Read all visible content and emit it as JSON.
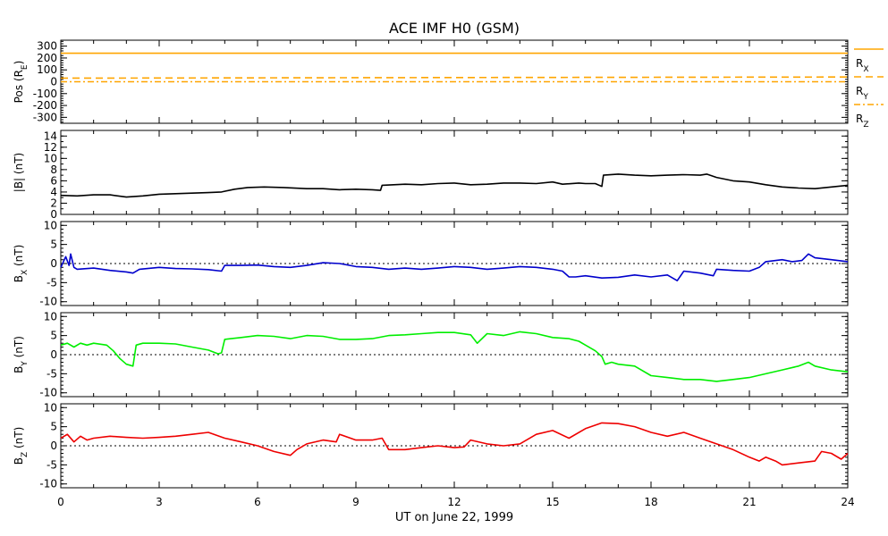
{
  "chart_data": {
    "type": "line",
    "title": "ACE IMF H0 (GSM)",
    "xlabel": "UT on June 22, 1999",
    "xlim": [
      0,
      24
    ],
    "xticks": [
      "0",
      "3",
      "6",
      "9",
      "12",
      "15",
      "18",
      "21",
      "24"
    ],
    "panels": [
      {
        "id": "pos",
        "ylabel": "Pos (R",
        "ylabel_sub": "E",
        "ylabel_tail": ")",
        "ylim": [
          -350,
          350
        ],
        "yticks": [
          300,
          200,
          100,
          0,
          -100,
          -200,
          -300
        ],
        "zero_line": false,
        "series": [
          {
            "name": "R",
            "sub": "X",
            "color": "#ffa500",
            "style": "solid",
            "x": [
              0,
              24
            ],
            "values": [
              240,
              240
            ]
          },
          {
            "name": "R",
            "sub": "Y",
            "color": "#ffa500",
            "style": "dashed",
            "x": [
              0,
              12,
              24
            ],
            "values": [
              30,
              35,
              40
            ]
          },
          {
            "name": "R",
            "sub": "Z",
            "color": "#ffa500",
            "style": "dashdot",
            "x": [
              0,
              24
            ],
            "values": [
              0,
              0
            ]
          }
        ]
      },
      {
        "id": "bmag",
        "ylabel": "|B| (nT)",
        "ylim": [
          0,
          15
        ],
        "yticks": [
          14,
          12,
          10,
          8,
          6,
          4,
          2,
          0
        ],
        "zero_line": false,
        "series": [
          {
            "color": "#000000",
            "x": [
              0,
              0.5,
              1,
              1.5,
              2,
              2.5,
              3,
              3.5,
              4,
              4.5,
              4.9,
              5.3,
              5.7,
              6.2,
              6.8,
              7.5,
              8,
              8.5,
              9,
              9.5,
              9.75,
              9.8,
              10.5,
              11,
              11.5,
              12,
              12.5,
              13,
              13.5,
              14,
              14.5,
              15,
              15.3,
              15.8,
              16,
              16.3,
              16.5,
              16.55,
              17,
              17.5,
              18,
              18.5,
              19,
              19.5,
              19.7,
              20,
              20.5,
              21,
              21.5,
              22,
              22.5,
              23,
              23.5,
              24
            ],
            "values": [
              3.4,
              3.3,
              3.5,
              3.5,
              3.1,
              3.3,
              3.6,
              3.7,
              3.8,
              3.9,
              4.0,
              4.5,
              4.8,
              4.9,
              4.8,
              4.6,
              4.6,
              4.4,
              4.5,
              4.4,
              4.3,
              5.2,
              5.4,
              5.3,
              5.5,
              5.6,
              5.3,
              5.4,
              5.6,
              5.6,
              5.5,
              5.8,
              5.4,
              5.6,
              5.5,
              5.5,
              5.0,
              7.0,
              7.2,
              7.0,
              6.9,
              7.0,
              7.1,
              7.0,
              7.2,
              6.6,
              6.0,
              5.8,
              5.3,
              4.9,
              4.7,
              4.6,
              4.9,
              5.2
            ]
          }
        ]
      },
      {
        "id": "bx",
        "ylabel": "B",
        "ylabel_sub": "X",
        "ylabel_tail": " (nT)",
        "ylim": [
          -11,
          11
        ],
        "yticks": [
          10,
          5,
          0,
          -5,
          -10
        ],
        "zero_line": true,
        "series": [
          {
            "color": "#0000cc",
            "x": [
              0,
              0.15,
              0.25,
              0.3,
              0.4,
              0.5,
              1,
              1.5,
              2,
              2.2,
              2.4,
              3,
              3.5,
              4,
              4.5,
              4.9,
              5.0,
              5.5,
              6,
              6.5,
              7,
              7.5,
              8,
              8.5,
              9,
              9.5,
              10,
              10.5,
              11,
              11.5,
              12,
              12.5,
              13,
              13.5,
              14,
              14.5,
              15,
              15.3,
              15.5,
              15.7,
              16,
              16.5,
              17,
              17.5,
              18,
              18.5,
              18.8,
              19,
              19.5,
              19.9,
              20,
              20.5,
              21,
              21.3,
              21.5,
              22,
              22.3,
              22.6,
              22.8,
              23,
              23.5,
              24
            ],
            "values": [
              -1.0,
              1.8,
              -0.5,
              2.5,
              -1.0,
              -1.5,
              -1.2,
              -1.8,
              -2.2,
              -2.5,
              -1.5,
              -1.0,
              -1.3,
              -1.4,
              -1.6,
              -2.0,
              -0.5,
              -0.5,
              -0.4,
              -0.8,
              -1.0,
              -0.5,
              0.2,
              0.0,
              -0.8,
              -1.0,
              -1.5,
              -1.2,
              -1.5,
              -1.2,
              -0.8,
              -1.0,
              -1.5,
              -1.2,
              -0.8,
              -1.0,
              -1.5,
              -2.0,
              -3.5,
              -3.5,
              -3.2,
              -3.8,
              -3.6,
              -3.0,
              -3.5,
              -3.0,
              -4.5,
              -2.0,
              -2.5,
              -3.2,
              -1.5,
              -1.8,
              -2.0,
              -1.0,
              0.5,
              1.0,
              0.5,
              0.8,
              2.5,
              1.5,
              1.0,
              0.5
            ]
          }
        ]
      },
      {
        "id": "by",
        "ylabel": "B",
        "ylabel_sub": "Y",
        "ylabel_tail": " (nT)",
        "ylim": [
          -11,
          11
        ],
        "yticks": [
          10,
          5,
          0,
          -5,
          -10
        ],
        "zero_line": true,
        "series": [
          {
            "color": "#00ee00",
            "x": [
              0,
              0.2,
              0.4,
              0.6,
              0.8,
              1,
              1.4,
              1.6,
              1.8,
              2.0,
              2.2,
              2.3,
              2.5,
              3,
              3.5,
              4,
              4.5,
              4.8,
              4.9,
              5.0,
              5.5,
              6,
              6.5,
              7,
              7.5,
              8,
              8.5,
              9,
              9.5,
              10,
              10.5,
              11,
              11.5,
              12,
              12.5,
              12.7,
              13,
              13.5,
              14,
              14.5,
              15,
              15.5,
              15.8,
              16,
              16.3,
              16.5,
              16.6,
              16.8,
              17,
              17.5,
              18,
              18.5,
              19,
              19.5,
              20,
              20.5,
              21,
              21.5,
              22,
              22.5,
              22.8,
              23,
              23.5,
              24
            ],
            "values": [
              2.5,
              3.0,
              2.0,
              3.0,
              2.5,
              3.0,
              2.5,
              1.0,
              -1.0,
              -2.5,
              -3.0,
              2.5,
              3.0,
              3.0,
              2.8,
              2.0,
              1.2,
              0.2,
              0.5,
              4.0,
              4.5,
              5.0,
              4.8,
              4.2,
              5.0,
              4.8,
              4.0,
              4.0,
              4.2,
              5.0,
              5.2,
              5.5,
              5.8,
              5.8,
              5.2,
              3.0,
              5.5,
              5.0,
              6.0,
              5.5,
              4.5,
              4.2,
              3.5,
              2.5,
              1.0,
              -0.5,
              -2.5,
              -2.0,
              -2.5,
              -3.0,
              -5.5,
              -6.0,
              -6.5,
              -6.5,
              -7.0,
              -6.5,
              -6.0,
              -5.0,
              -4.0,
              -3.0,
              -2.0,
              -3.0,
              -4.0,
              -4.5
            ]
          }
        ]
      },
      {
        "id": "bz",
        "ylabel": "B",
        "ylabel_sub": "Z",
        "ylabel_tail": " (nT)",
        "ylim": [
          -11,
          11
        ],
        "yticks": [
          10,
          5,
          0,
          -5,
          -10
        ],
        "zero_line": true,
        "series": [
          {
            "color": "#ee0000",
            "x": [
              0,
              0.2,
              0.4,
              0.6,
              0.8,
              1,
              1.5,
              2,
              2.5,
              3,
              3.5,
              4,
              4.5,
              5.0,
              5.5,
              6,
              6.5,
              7,
              7.2,
              7.5,
              8,
              8.4,
              8.5,
              9,
              9.5,
              9.8,
              10,
              10.5,
              11,
              11.5,
              12,
              12.3,
              12.5,
              13,
              13.5,
              14,
              14.5,
              15,
              15.5,
              16,
              16.5,
              17,
              17.5,
              18,
              18.5,
              19,
              19.5,
              20,
              20.5,
              21,
              21.3,
              21.5,
              21.8,
              22,
              22.5,
              23,
              23.2,
              23.5,
              23.8,
              24
            ],
            "values": [
              2.0,
              3.0,
              1.0,
              2.5,
              1.5,
              2.0,
              2.5,
              2.2,
              2.0,
              2.2,
              2.5,
              3.0,
              3.5,
              2.0,
              1.0,
              0.0,
              -1.5,
              -2.5,
              -1.0,
              0.5,
              1.5,
              1.0,
              3.0,
              1.5,
              1.5,
              2.0,
              -1.0,
              -1.0,
              -0.5,
              0.0,
              -0.5,
              -0.3,
              1.5,
              0.5,
              0.0,
              0.5,
              3.0,
              4.0,
              2.0,
              4.5,
              6.0,
              5.8,
              5.0,
              3.5,
              2.5,
              3.5,
              2.0,
              0.5,
              -1.0,
              -3.0,
              -4.0,
              -3.0,
              -4.0,
              -5.0,
              -4.5,
              -4.0,
              -1.5,
              -2.0,
              -3.5,
              -2.0
            ]
          }
        ]
      }
    ]
  }
}
